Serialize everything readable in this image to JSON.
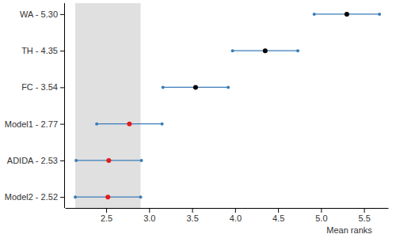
{
  "chart_data": {
    "type": "dot_interval",
    "x_label": "Mean ranks",
    "categories": [
      "WA - 5.30",
      "TH - 4.35",
      "FC - 3.54",
      "Model1 - 2.77",
      "ADIDA - 2.53",
      "Model2 - 2.52"
    ],
    "values": [
      5.3,
      4.35,
      3.54,
      2.77,
      2.53,
      2.52
    ],
    "errors": [
      0.38,
      0.38,
      0.38,
      0.38,
      0.38,
      0.38
    ],
    "colors": [
      "#000000",
      "#000000",
      "#000000",
      "#e41a1c",
      "#e41a1c",
      "#e41a1c"
    ],
    "color": "#3a7cb8",
    "shaded_range": [
      2.14,
      2.9
    ],
    "xlim": [
      2.02,
      5.78
    ],
    "xticks": [
      2.5,
      {
        "value": 3.0,
        "label": "3.0"
      },
      3.5,
      {
        "value": 4.0,
        "label": "4.0"
      },
      4.5,
      {
        "value": 5.0,
        "label": "5.0"
      },
      5.5
    ]
  }
}
